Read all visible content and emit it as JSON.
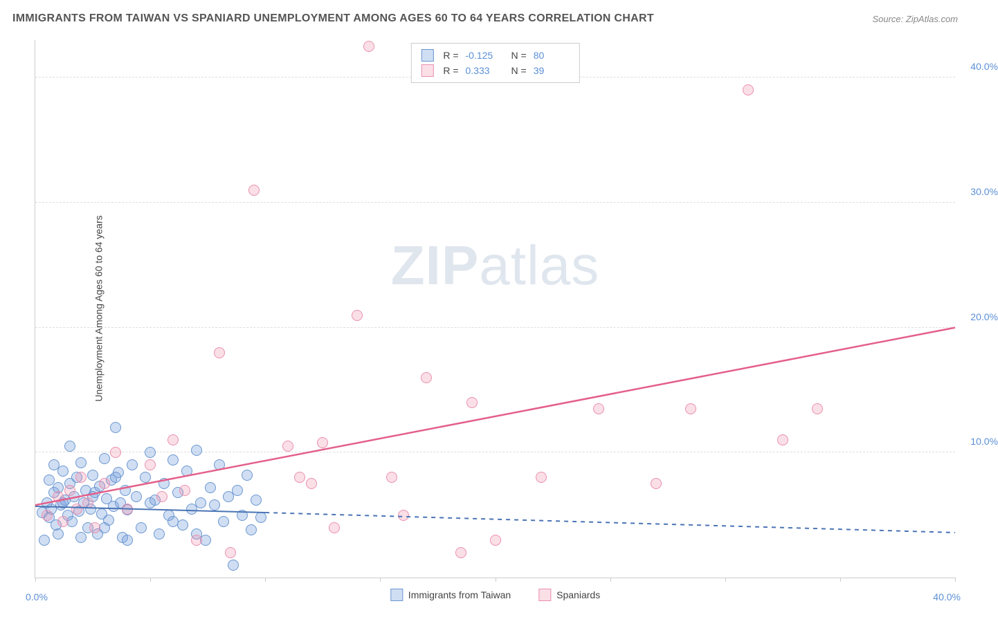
{
  "title": "IMMIGRANTS FROM TAIWAN VS SPANIARD UNEMPLOYMENT AMONG AGES 60 TO 64 YEARS CORRELATION CHART",
  "source_label": "Source: ZipAtlas.com",
  "y_axis_label": "Unemployment Among Ages 60 to 64 years",
  "watermark_bold": "ZIP",
  "watermark_light": "atlas",
  "chart": {
    "type": "scatter",
    "xlim": [
      0,
      40
    ],
    "ylim": [
      0,
      43
    ],
    "x_tick_positions": [
      0,
      5,
      10,
      15,
      20,
      25,
      30,
      35,
      40
    ],
    "x_tick_labels": {
      "0": "0.0%",
      "40": "40.0%"
    },
    "y_gridlines": [
      10,
      20,
      30,
      40
    ],
    "y_tick_labels": {
      "10": "10.0%",
      "20": "20.0%",
      "30": "30.0%",
      "40": "40.0%"
    },
    "background_color": "#ffffff",
    "grid_color": "#dddddd",
    "axis_color": "#cccccc",
    "tick_label_color": "#5b8fd6",
    "marker_radius": 8,
    "series": [
      {
        "name": "Immigrants from Taiwan",
        "fill_color": "rgba(120,160,220,0.35)",
        "stroke_color": "#6a96d0",
        "r_label": "R =",
        "r_value": "-0.125",
        "n_label": "N =",
        "n_value": "80",
        "regression": {
          "x1": 0,
          "y1": 5.7,
          "x2": 10,
          "y2": 5.2,
          "solid": true,
          "extend_x2": 40,
          "extend_y2": 3.6,
          "color": "#4a74b5",
          "width": 2
        },
        "points": [
          [
            0.3,
            5.2
          ],
          [
            0.5,
            6.0
          ],
          [
            0.6,
            4.8
          ],
          [
            0.7,
            5.5
          ],
          [
            0.8,
            6.8
          ],
          [
            0.9,
            4.2
          ],
          [
            1.0,
            7.2
          ],
          [
            1.1,
            5.8
          ],
          [
            1.2,
            8.5
          ],
          [
            1.3,
            6.2
          ],
          [
            1.4,
            5.0
          ],
          [
            1.5,
            7.5
          ],
          [
            1.6,
            4.5
          ],
          [
            1.7,
            6.5
          ],
          [
            1.8,
            8.0
          ],
          [
            1.9,
            5.3
          ],
          [
            2.0,
            9.2
          ],
          [
            2.1,
            6.0
          ],
          [
            2.2,
            7.0
          ],
          [
            2.3,
            4.0
          ],
          [
            2.4,
            5.5
          ],
          [
            2.5,
            8.2
          ],
          [
            2.6,
            6.8
          ],
          [
            2.7,
            3.5
          ],
          [
            2.8,
            7.3
          ],
          [
            2.9,
            5.1
          ],
          [
            3.0,
            9.5
          ],
          [
            3.1,
            6.3
          ],
          [
            3.2,
            4.6
          ],
          [
            3.3,
            7.8
          ],
          [
            3.4,
            5.7
          ],
          [
            3.5,
            12.0
          ],
          [
            3.6,
            8.4
          ],
          [
            3.7,
            6.0
          ],
          [
            3.8,
            3.2
          ],
          [
            3.9,
            7.0
          ],
          [
            4.0,
            5.4
          ],
          [
            4.2,
            9.0
          ],
          [
            4.4,
            6.5
          ],
          [
            4.6,
            4.0
          ],
          [
            4.8,
            8.0
          ],
          [
            5.0,
            10.0
          ],
          [
            5.2,
            6.2
          ],
          [
            5.4,
            3.5
          ],
          [
            5.6,
            7.5
          ],
          [
            5.8,
            5.0
          ],
          [
            6.0,
            9.4
          ],
          [
            6.2,
            6.8
          ],
          [
            6.4,
            4.2
          ],
          [
            6.6,
            8.5
          ],
          [
            6.8,
            5.5
          ],
          [
            7.0,
            10.2
          ],
          [
            7.2,
            6.0
          ],
          [
            7.4,
            3.0
          ],
          [
            7.6,
            7.2
          ],
          [
            7.8,
            5.8
          ],
          [
            8.0,
            9.0
          ],
          [
            8.2,
            4.5
          ],
          [
            8.4,
            6.5
          ],
          [
            8.6,
            1.0
          ],
          [
            8.8,
            7.0
          ],
          [
            9.0,
            5.0
          ],
          [
            9.2,
            8.2
          ],
          [
            9.4,
            3.8
          ],
          [
            9.6,
            6.2
          ],
          [
            9.8,
            4.8
          ],
          [
            0.4,
            3.0
          ],
          [
            0.6,
            7.8
          ],
          [
            0.8,
            9.0
          ],
          [
            1.0,
            3.5
          ],
          [
            1.2,
            6.0
          ],
          [
            1.5,
            10.5
          ],
          [
            2.0,
            3.2
          ],
          [
            2.5,
            6.5
          ],
          [
            3.0,
            4.0
          ],
          [
            3.5,
            8.0
          ],
          [
            4.0,
            3.0
          ],
          [
            5.0,
            6.0
          ],
          [
            6.0,
            4.5
          ],
          [
            7.0,
            3.5
          ]
        ]
      },
      {
        "name": "Spaniards",
        "fill_color": "rgba(240,140,170,0.28)",
        "stroke_color": "#e98fb0",
        "r_label": "R =",
        "r_value": "0.333",
        "n_label": "N =",
        "n_value": "39",
        "regression": {
          "x1": 0,
          "y1": 5.8,
          "x2": 40,
          "y2": 20.0,
          "solid": true,
          "color": "#e45f8a",
          "width": 2.5
        },
        "points": [
          [
            0.5,
            5.0
          ],
          [
            1.0,
            6.5
          ],
          [
            1.2,
            4.5
          ],
          [
            1.5,
            7.0
          ],
          [
            1.8,
            5.5
          ],
          [
            2.0,
            8.0
          ],
          [
            2.3,
            6.0
          ],
          [
            2.6,
            4.0
          ],
          [
            3.0,
            7.5
          ],
          [
            3.5,
            10.0
          ],
          [
            4.0,
            5.5
          ],
          [
            5.0,
            9.0
          ],
          [
            5.5,
            6.5
          ],
          [
            6.0,
            11.0
          ],
          [
            6.5,
            7.0
          ],
          [
            7.0,
            3.0
          ],
          [
            8.0,
            18.0
          ],
          [
            8.5,
            2.0
          ],
          [
            9.5,
            31.0
          ],
          [
            11.0,
            10.5
          ],
          [
            11.5,
            8.0
          ],
          [
            12.0,
            7.5
          ],
          [
            12.5,
            10.8
          ],
          [
            13.0,
            4.0
          ],
          [
            14.0,
            21.0
          ],
          [
            14.5,
            42.5
          ],
          [
            15.5,
            8.0
          ],
          [
            16.0,
            5.0
          ],
          [
            17.0,
            16.0
          ],
          [
            18.5,
            2.0
          ],
          [
            19.0,
            14.0
          ],
          [
            20.0,
            3.0
          ],
          [
            22.0,
            8.0
          ],
          [
            24.5,
            13.5
          ],
          [
            27.0,
            7.5
          ],
          [
            28.5,
            13.5
          ],
          [
            31.0,
            39.0
          ],
          [
            32.5,
            11.0
          ],
          [
            34.0,
            13.5
          ]
        ]
      }
    ]
  }
}
